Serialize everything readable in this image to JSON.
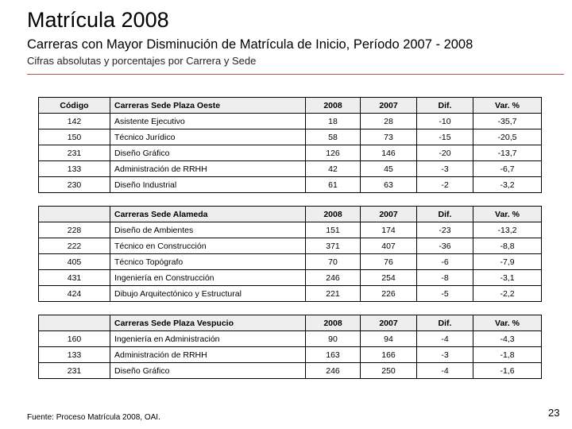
{
  "title": "Matrícula 2008",
  "subtitle": "Carreras con Mayor Disminución de Matrícula de Inicio, Período 2007 - 2008",
  "note": "Cifras absolutas y porcentajes por Carrera y Sede",
  "tables": [
    {
      "header": [
        "Código",
        "Carreras Sede Plaza Oeste",
        "2008",
        "2007",
        "Dif.",
        "Var. %"
      ],
      "rows": [
        [
          "142",
          "Asistente Ejecutivo",
          "18",
          "28",
          "-10",
          "-35,7"
        ],
        [
          "150",
          "Técnico Jurídico",
          "58",
          "73",
          "-15",
          "-20,5"
        ],
        [
          "231",
          "Diseño Gráfico",
          "126",
          "146",
          "-20",
          "-13,7"
        ],
        [
          "133",
          "Administración de RRHH",
          "42",
          "45",
          "-3",
          "-6,7"
        ],
        [
          "230",
          "Diseño Industrial",
          "61",
          "63",
          "-2",
          "-3,2"
        ]
      ]
    },
    {
      "header": [
        "",
        "Carreras Sede Alameda",
        "2008",
        "2007",
        "Dif.",
        "Var. %"
      ],
      "rows": [
        [
          "228",
          "Diseño de Ambientes",
          "151",
          "174",
          "-23",
          "-13,2"
        ],
        [
          "222",
          "Técnico en Construcción",
          "371",
          "407",
          "-36",
          "-8,8"
        ],
        [
          "405",
          "Técnico Topógrafo",
          "70",
          "76",
          "-6",
          "-7,9"
        ],
        [
          "431",
          "Ingeniería en Construcción",
          "246",
          "254",
          "-8",
          "-3,1"
        ],
        [
          "424",
          "Dibujo Arquitectónico y Estructural",
          "221",
          "226",
          "-5",
          "-2,2"
        ]
      ]
    },
    {
      "header": [
        "",
        "Carreras Sede Plaza Vespucio",
        "2008",
        "2007",
        "Dif.",
        "Var. %"
      ],
      "rows": [
        [
          "160",
          "Ingeniería en Administración",
          "90",
          "94",
          "-4",
          "-4,3"
        ],
        [
          "133",
          "Administración de RRHH",
          "163",
          "166",
          "-3",
          "-1,8"
        ],
        [
          "231",
          "Diseño Gráfico",
          "246",
          "250",
          "-4",
          "-1,6"
        ]
      ]
    }
  ],
  "footer": "Fuente: Proceso Matrícula 2008, OAI.",
  "page_number": "23",
  "colors": {
    "accent_rule": "#c0504d",
    "header_fill": "#eeeeee"
  }
}
